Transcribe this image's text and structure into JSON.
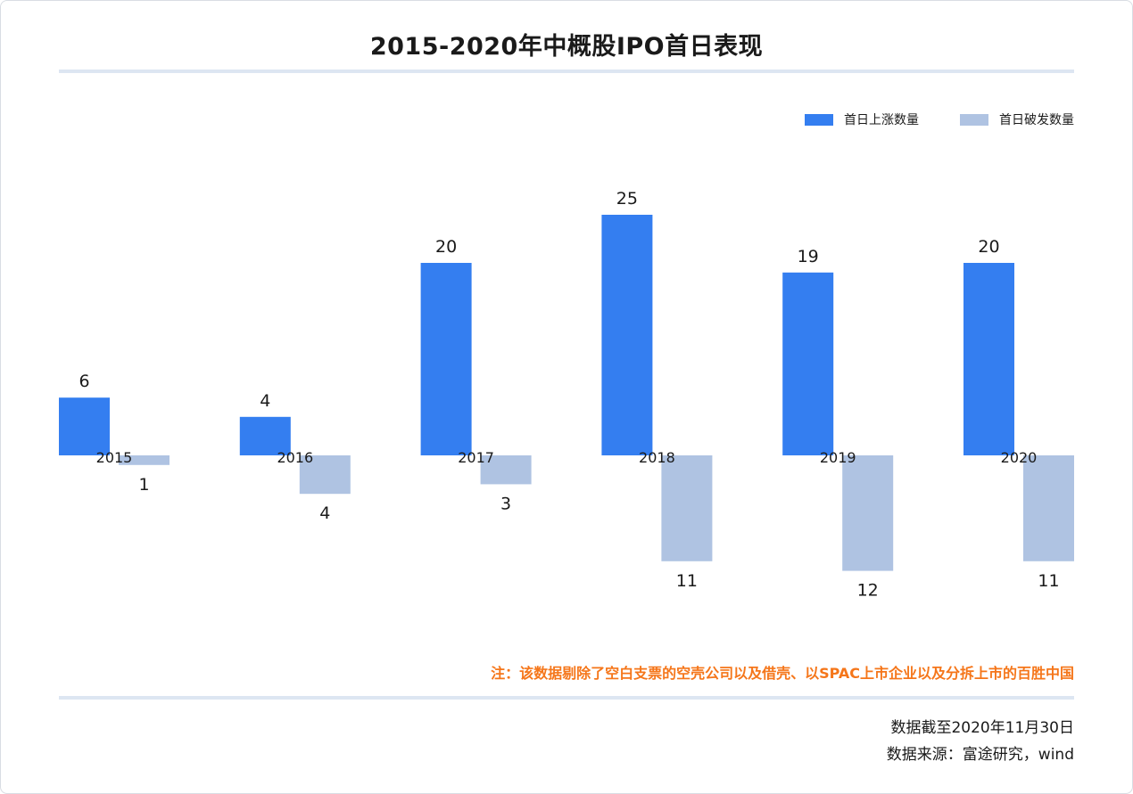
{
  "chart_data": {
    "type": "bar",
    "title": "2015-2020年中概股IPO首日表现",
    "categories": [
      "2015",
      "2016",
      "2017",
      "2018",
      "2019",
      "2020"
    ],
    "series": [
      {
        "name": "首日上涨数量",
        "values": [
          6,
          4,
          20,
          25,
          19,
          20
        ],
        "color": "#347ef0",
        "direction": "up"
      },
      {
        "name": "首日破发数量",
        "values": [
          1,
          4,
          3,
          11,
          12,
          11
        ],
        "color": "#afc3e2",
        "direction": "down"
      }
    ],
    "xlabel": "",
    "ylabel": "",
    "ylim": [
      -12,
      25
    ],
    "grid": false,
    "legend": "top-right"
  },
  "note": "注：该数据剔除了空白支票的空壳公司以及借壳、以SPAC上市企业以及分拆上市的百胜中国",
  "footer": {
    "date": "数据截至2020年11月30日",
    "source": "数据来源：富途研究，wind"
  }
}
